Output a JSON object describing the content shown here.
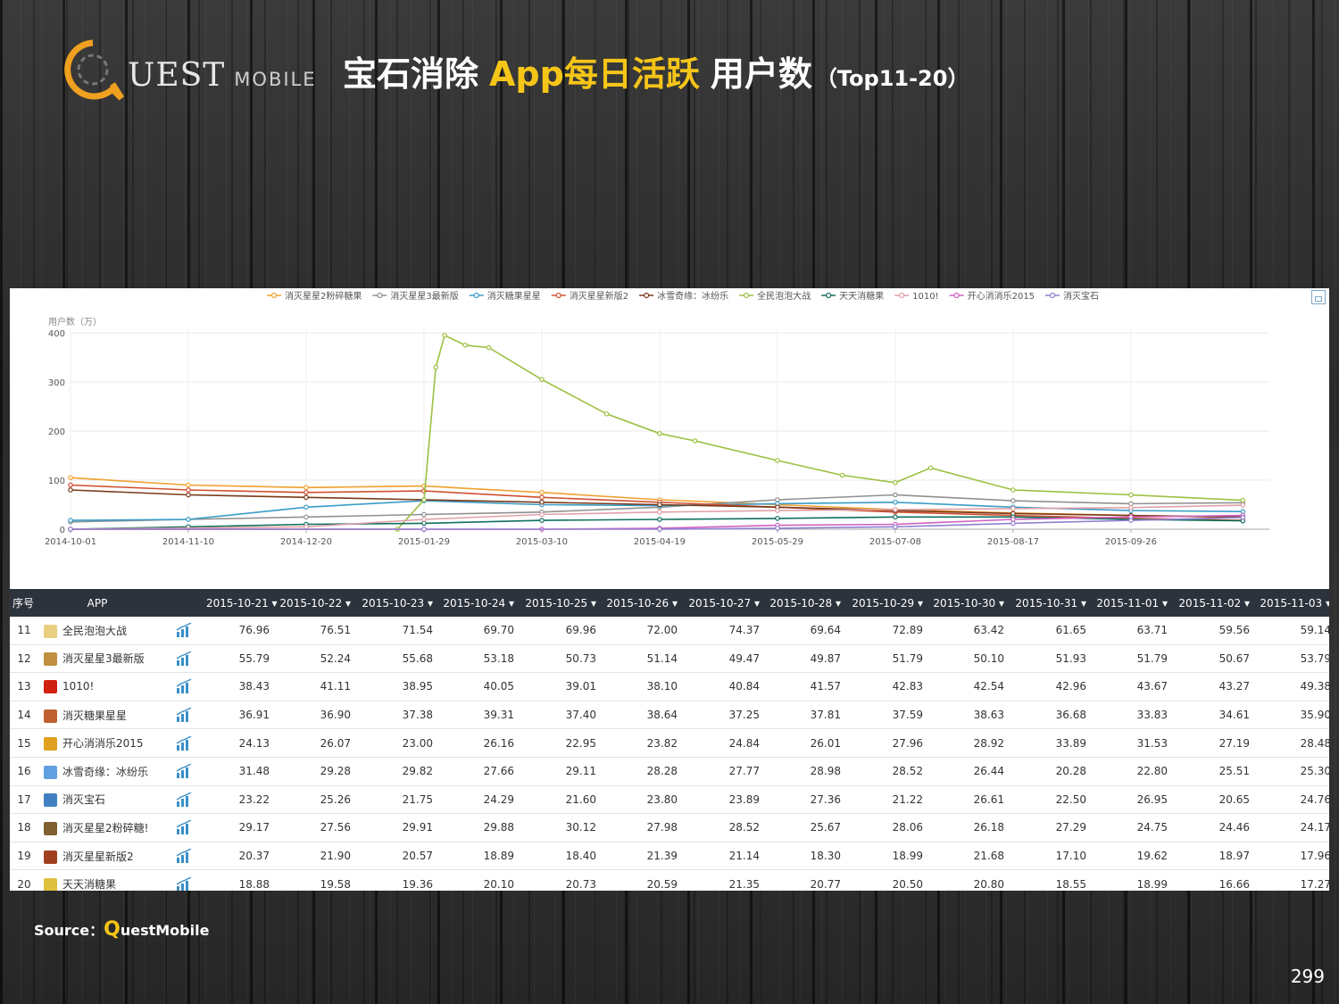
{
  "logo": {
    "brand_q": "Q",
    "brand_rest": "UEST",
    "brand_mobile": "MOBILE",
    "accent": "#f0a020"
  },
  "title": {
    "part1": "宝石消除",
    "part2": "App每日活跃",
    "part3": "用户数",
    "part4": "（Top11-20）"
  },
  "chart_data": {
    "type": "line",
    "title": "",
    "ylabel": "用户数（万）",
    "ylim": [
      0,
      400
    ],
    "yticks": [
      0,
      100,
      200,
      300,
      400
    ],
    "xlabel": "",
    "x_ticks": [
      "2014-10-01",
      "2014-11-10",
      "2014-12-20",
      "2015-01-29",
      "2015-03-10",
      "2015-04-19",
      "2015-05-29",
      "2015-07-08",
      "2015-08-17",
      "2015-09-26"
    ],
    "x_range": [
      "2014-10-01",
      "2015-11-12"
    ],
    "legend_position": "top",
    "grid": true,
    "series": [
      {
        "name": "消灭星星2粉碎糖果",
        "color": "#f0a030",
        "points": [
          [
            "2014-10-01",
            105
          ],
          [
            "2014-11-10",
            90
          ],
          [
            "2014-12-20",
            85
          ],
          [
            "2015-01-29",
            88
          ],
          [
            "2015-03-10",
            75
          ],
          [
            "2015-04-19",
            60
          ],
          [
            "2015-05-29",
            50
          ],
          [
            "2015-07-08",
            40
          ],
          [
            "2015-08-17",
            33
          ],
          [
            "2015-09-26",
            28
          ],
          [
            "2015-11-03",
            24
          ]
        ]
      },
      {
        "name": "消灭星星3最新版",
        "color": "#909090",
        "points": [
          [
            "2014-10-01",
            15
          ],
          [
            "2014-11-10",
            20
          ],
          [
            "2014-12-20",
            25
          ],
          [
            "2015-01-29",
            30
          ],
          [
            "2015-03-10",
            35
          ],
          [
            "2015-04-19",
            45
          ],
          [
            "2015-05-29",
            60
          ],
          [
            "2015-07-08",
            70
          ],
          [
            "2015-08-17",
            58
          ],
          [
            "2015-09-26",
            52
          ],
          [
            "2015-11-03",
            54
          ]
        ]
      },
      {
        "name": "消灭糖果星星",
        "color": "#3a9cc8",
        "points": [
          [
            "2014-10-01",
            18
          ],
          [
            "2014-11-10",
            20
          ],
          [
            "2014-12-20",
            45
          ],
          [
            "2015-01-29",
            58
          ],
          [
            "2015-03-10",
            50
          ],
          [
            "2015-04-19",
            48
          ],
          [
            "2015-05-29",
            52
          ],
          [
            "2015-07-08",
            55
          ],
          [
            "2015-08-17",
            45
          ],
          [
            "2015-09-26",
            38
          ],
          [
            "2015-11-03",
            36
          ]
        ]
      },
      {
        "name": "消灭星星新版2",
        "color": "#d05030",
        "points": [
          [
            "2014-10-01",
            90
          ],
          [
            "2014-11-10",
            80
          ],
          [
            "2014-12-20",
            75
          ],
          [
            "2015-01-29",
            78
          ],
          [
            "2015-03-10",
            65
          ],
          [
            "2015-04-19",
            55
          ],
          [
            "2015-05-29",
            45
          ],
          [
            "2015-07-08",
            35
          ],
          [
            "2015-08-17",
            28
          ],
          [
            "2015-09-26",
            22
          ],
          [
            "2015-11-03",
            18
          ]
        ]
      },
      {
        "name": "冰雪奇缘：冰纷乐",
        "color": "#7a3a1a",
        "points": [
          [
            "2014-10-01",
            80
          ],
          [
            "2014-11-10",
            70
          ],
          [
            "2014-12-20",
            65
          ],
          [
            "2015-01-29",
            60
          ],
          [
            "2015-03-10",
            55
          ],
          [
            "2015-04-19",
            50
          ],
          [
            "2015-05-29",
            45
          ],
          [
            "2015-07-08",
            38
          ],
          [
            "2015-08-17",
            32
          ],
          [
            "2015-09-26",
            28
          ],
          [
            "2015-11-03",
            25
          ]
        ]
      },
      {
        "name": "全民泡泡大战",
        "color": "#9cc040",
        "points": [
          [
            "2014-10-01",
            0
          ],
          [
            "2015-01-20",
            0
          ],
          [
            "2015-01-29",
            60
          ],
          [
            "2015-02-02",
            330
          ],
          [
            "2015-02-05",
            395
          ],
          [
            "2015-02-12",
            375
          ],
          [
            "2015-02-20",
            370
          ],
          [
            "2015-03-10",
            305
          ],
          [
            "2015-04-01",
            235
          ],
          [
            "2015-04-19",
            195
          ],
          [
            "2015-05-01",
            180
          ],
          [
            "2015-05-29",
            140
          ],
          [
            "2015-06-20",
            110
          ],
          [
            "2015-07-08",
            95
          ],
          [
            "2015-07-20",
            125
          ],
          [
            "2015-08-17",
            80
          ],
          [
            "2015-09-26",
            70
          ],
          [
            "2015-11-03",
            59
          ]
        ]
      },
      {
        "name": "天天消糖果",
        "color": "#107060",
        "points": [
          [
            "2014-10-01",
            0
          ],
          [
            "2014-11-10",
            5
          ],
          [
            "2014-12-20",
            10
          ],
          [
            "2015-01-29",
            12
          ],
          [
            "2015-03-10",
            18
          ],
          [
            "2015-04-19",
            20
          ],
          [
            "2015-05-29",
            22
          ],
          [
            "2015-07-08",
            25
          ],
          [
            "2015-08-17",
            25
          ],
          [
            "2015-09-26",
            20
          ],
          [
            "2015-11-03",
            17
          ]
        ]
      },
      {
        "name": "1010!",
        "color": "#e0a0a8",
        "points": [
          [
            "2014-10-01",
            0
          ],
          [
            "2014-12-20",
            5
          ],
          [
            "2015-01-29",
            20
          ],
          [
            "2015-03-10",
            30
          ],
          [
            "2015-04-19",
            35
          ],
          [
            "2015-05-29",
            38
          ],
          [
            "2015-07-08",
            40
          ],
          [
            "2015-08-17",
            42
          ],
          [
            "2015-09-26",
            44
          ],
          [
            "2015-11-03",
            49
          ]
        ]
      },
      {
        "name": "开心消消乐2015",
        "color": "#d060c0",
        "points": [
          [
            "2014-10-01",
            0
          ],
          [
            "2015-01-29",
            0
          ],
          [
            "2015-03-10",
            0
          ],
          [
            "2015-04-19",
            2
          ],
          [
            "2015-05-29",
            8
          ],
          [
            "2015-07-08",
            10
          ],
          [
            "2015-08-17",
            20
          ],
          [
            "2015-09-26",
            25
          ],
          [
            "2015-11-03",
            28
          ]
        ]
      },
      {
        "name": "消灭宝石",
        "color": "#9080d0",
        "points": [
          [
            "2014-10-01",
            0
          ],
          [
            "2015-01-29",
            0
          ],
          [
            "2015-04-19",
            0
          ],
          [
            "2015-05-29",
            2
          ],
          [
            "2015-07-08",
            5
          ],
          [
            "2015-08-17",
            12
          ],
          [
            "2015-09-26",
            18
          ],
          [
            "2015-11-03",
            24
          ]
        ]
      }
    ]
  },
  "table": {
    "headers": [
      "序号",
      "APP",
      "",
      "2015-10-21 ▾",
      "2015-10-22 ▾",
      "2015-10-23 ▾",
      "2015-10-24 ▾",
      "2015-10-25 ▾",
      "2015-10-26 ▾",
      "2015-10-27 ▾",
      "2015-10-28 ▾",
      "2015-10-29 ▾",
      "2015-10-30 ▾",
      "2015-10-31 ▾",
      "2015-11-01 ▾",
      "2015-11-02 ▾",
      "2015-11-03 ▾"
    ],
    "rows": [
      {
        "idx": "11",
        "app": "全民泡泡大战",
        "icon_color": "#e8d080",
        "values": [
          "76.96",
          "76.51",
          "71.54",
          "69.70",
          "69.96",
          "72.00",
          "74.37",
          "69.64",
          "72.89",
          "63.42",
          "61.65",
          "63.71",
          "59.56",
          "59.14"
        ]
      },
      {
        "idx": "12",
        "app": "消灭星星3最新版",
        "icon_color": "#c09040",
        "values": [
          "55.79",
          "52.24",
          "55.68",
          "53.18",
          "50.73",
          "51.14",
          "49.47",
          "49.87",
          "51.79",
          "50.10",
          "51.93",
          "51.79",
          "50.67",
          "53.79"
        ]
      },
      {
        "idx": "13",
        "app": "1010!",
        "icon_color": "#d02010",
        "values": [
          "38.43",
          "41.11",
          "38.95",
          "40.05",
          "39.01",
          "38.10",
          "40.84",
          "41.57",
          "42.83",
          "42.54",
          "42.96",
          "43.67",
          "43.27",
          "49.38"
        ]
      },
      {
        "idx": "14",
        "app": "消灭糖果星星",
        "icon_color": "#c06030",
        "values": [
          "36.91",
          "36.90",
          "37.38",
          "39.31",
          "37.40",
          "38.64",
          "37.25",
          "37.81",
          "37.59",
          "38.63",
          "36.68",
          "33.83",
          "34.61",
          "35.90"
        ]
      },
      {
        "idx": "15",
        "app": "开心消消乐2015",
        "icon_color": "#e0a020",
        "values": [
          "24.13",
          "26.07",
          "23.00",
          "26.16",
          "22.95",
          "23.82",
          "24.84",
          "26.01",
          "27.96",
          "28.92",
          "33.89",
          "31.53",
          "27.19",
          "28.48"
        ]
      },
      {
        "idx": "16",
        "app": "冰雪奇缘：冰纷乐",
        "icon_color": "#60a0e0",
        "values": [
          "31.48",
          "29.28",
          "29.82",
          "27.66",
          "29.11",
          "28.28",
          "27.77",
          "28.98",
          "28.52",
          "26.44",
          "20.28",
          "22.80",
          "25.51",
          "25.30"
        ]
      },
      {
        "idx": "17",
        "app": "消灭宝石",
        "icon_color": "#4080c0",
        "values": [
          "23.22",
          "25.26",
          "21.75",
          "24.29",
          "21.60",
          "23.80",
          "23.89",
          "27.36",
          "21.22",
          "26.61",
          "22.50",
          "26.95",
          "20.65",
          "24.76"
        ]
      },
      {
        "idx": "18",
        "app": "消灭星星2粉碎糖!",
        "icon_color": "#806030",
        "values": [
          "29.17",
          "27.56",
          "29.91",
          "29.88",
          "30.12",
          "27.98",
          "28.52",
          "25.67",
          "28.06",
          "26.18",
          "27.29",
          "24.75",
          "24.46",
          "24.17"
        ]
      },
      {
        "idx": "19",
        "app": "消灭星星新版2",
        "icon_color": "#a04020",
        "values": [
          "20.37",
          "21.90",
          "20.57",
          "18.89",
          "18.40",
          "21.39",
          "21.14",
          "18.30",
          "18.99",
          "21.68",
          "17.10",
          "19.62",
          "18.97",
          "17.96"
        ]
      },
      {
        "idx": "20",
        "app": "天天消糖果",
        "icon_color": "#e0c040",
        "values": [
          "18.88",
          "19.58",
          "19.36",
          "20.10",
          "20.73",
          "20.59",
          "21.35",
          "20.77",
          "20.50",
          "20.80",
          "18.55",
          "18.99",
          "16.66",
          "17.27"
        ]
      }
    ]
  },
  "source": {
    "label": "Source：",
    "q": "Q",
    "rest": "uestMobile"
  },
  "page_number": "299"
}
